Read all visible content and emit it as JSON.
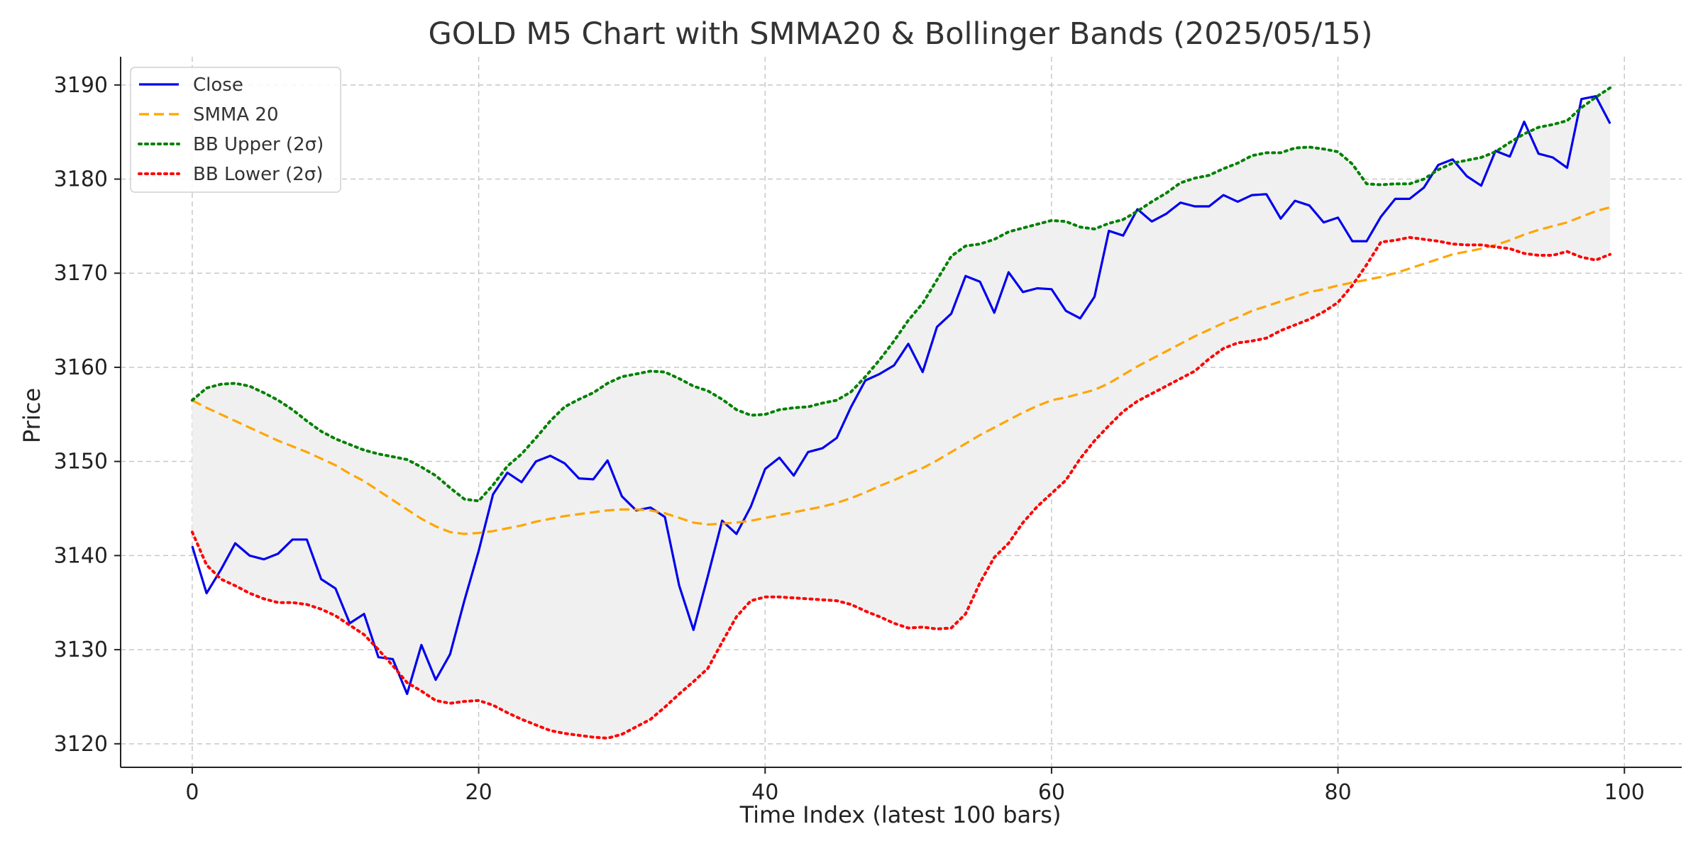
{
  "chart_data": {
    "type": "line",
    "title": "GOLD M5 Chart with SMMA20 & Bollinger Bands (2025/05/15)",
    "xlabel": "Time Index (latest 100 bars)",
    "ylabel": "Price",
    "xlim": [
      -5,
      104
    ],
    "ylim": [
      3117.5,
      3193
    ],
    "xticks": [
      0,
      20,
      40,
      60,
      80,
      100
    ],
    "yticks": [
      3120,
      3130,
      3140,
      3150,
      3160,
      3170,
      3180,
      3190
    ],
    "grid": true,
    "legend_position": "top-left",
    "band_fill": "#f0f0f0",
    "series": [
      {
        "name": "Close",
        "style": "solid",
        "color": "#0000ee",
        "values": [
          3141.0,
          3136.0,
          3138.5,
          3141.3,
          3140.0,
          3139.6,
          3140.2,
          3141.7,
          3141.7,
          3137.5,
          3136.5,
          3132.8,
          3133.8,
          3129.2,
          3129.0,
          3125.3,
          3130.5,
          3126.8,
          3129.5,
          3135.2,
          3140.5,
          3146.5,
          3148.8,
          3147.8,
          3150.0,
          3150.6,
          3149.8,
          3148.2,
          3148.1,
          3150.1,
          3146.3,
          3144.8,
          3145.1,
          3144.1,
          3136.8,
          3132.1,
          3137.8,
          3143.7,
          3142.3,
          3145.2,
          3149.2,
          3150.4,
          3148.5,
          3151.0,
          3151.4,
          3152.5,
          3155.8,
          3158.6,
          3159.3,
          3160.2,
          3162.5,
          3159.5,
          3164.3,
          3165.7,
          3169.7,
          3169.1,
          3165.8,
          3170.1,
          3168.0,
          3168.4,
          3168.3,
          3166.0,
          3165.2,
          3167.5,
          3174.5,
          3174.0,
          3176.8,
          3175.5,
          3176.3,
          3177.5,
          3177.1,
          3177.1,
          3178.3,
          3177.6,
          3178.3,
          3178.4,
          3175.8,
          3177.7,
          3177.2,
          3175.4,
          3175.9,
          3173.4,
          3173.4,
          3176.0,
          3177.9,
          3177.9,
          3179.1,
          3181.5,
          3182.1,
          3180.3,
          3179.3,
          3183.0,
          3182.4,
          3186.1,
          3182.7,
          3182.3,
          3181.2,
          3188.5,
          3188.8,
          3185.9
        ]
      },
      {
        "name": "SMMA 20",
        "style": "dashed",
        "color": "#ffa500",
        "values": [
          3156.5,
          3155.7,
          3155.0,
          3154.3,
          3153.6,
          3152.9,
          3152.2,
          3151.6,
          3151.0,
          3150.3,
          3149.6,
          3148.7,
          3147.9,
          3146.9,
          3145.9,
          3144.9,
          3143.9,
          3143.1,
          3142.5,
          3142.3,
          3142.4,
          3142.6,
          3142.9,
          3143.2,
          3143.6,
          3143.9,
          3144.2,
          3144.4,
          3144.6,
          3144.8,
          3144.9,
          3144.9,
          3144.8,
          3144.5,
          3144.0,
          3143.5,
          3143.3,
          3143.4,
          3143.5,
          3143.7,
          3144.0,
          3144.3,
          3144.6,
          3144.9,
          3145.2,
          3145.6,
          3146.1,
          3146.7,
          3147.4,
          3148.0,
          3148.7,
          3149.3,
          3150.1,
          3151.0,
          3151.9,
          3152.8,
          3153.6,
          3154.4,
          3155.2,
          3155.9,
          3156.5,
          3156.8,
          3157.2,
          3157.6,
          3158.3,
          3159.2,
          3160.1,
          3160.9,
          3161.7,
          3162.5,
          3163.3,
          3164.0,
          3164.7,
          3165.3,
          3166.0,
          3166.5,
          3167.0,
          3167.5,
          3168.0,
          3168.3,
          3168.7,
          3169.0,
          3169.3,
          3169.6,
          3170.0,
          3170.5,
          3171.0,
          3171.5,
          3172.0,
          3172.3,
          3172.6,
          3173.0,
          3173.5,
          3174.1,
          3174.6,
          3175.0,
          3175.4,
          3176.0,
          3176.6,
          3177.0
        ]
      },
      {
        "name": "BB Upper (2σ)",
        "style": "dotted",
        "color": "#008000",
        "values": [
          3156.5,
          3157.8,
          3158.2,
          3158.3,
          3158.0,
          3157.3,
          3156.5,
          3155.5,
          3154.3,
          3153.2,
          3152.4,
          3151.8,
          3151.2,
          3150.8,
          3150.5,
          3150.2,
          3149.4,
          3148.5,
          3147.2,
          3146.0,
          3145.8,
          3147.5,
          3149.5,
          3150.8,
          3152.5,
          3154.3,
          3155.8,
          3156.6,
          3157.3,
          3158.3,
          3159.0,
          3159.3,
          3159.6,
          3159.5,
          3158.8,
          3158.0,
          3157.5,
          3156.6,
          3155.5,
          3154.9,
          3155.0,
          3155.5,
          3155.7,
          3155.8,
          3156.2,
          3156.5,
          3157.4,
          3159.0,
          3160.8,
          3162.8,
          3165.0,
          3166.8,
          3169.3,
          3171.8,
          3172.9,
          3173.1,
          3173.6,
          3174.4,
          3174.8,
          3175.2,
          3175.6,
          3175.5,
          3174.9,
          3174.7,
          3175.3,
          3175.7,
          3176.6,
          3177.6,
          3178.5,
          3179.6,
          3180.1,
          3180.4,
          3181.1,
          3181.7,
          3182.5,
          3182.8,
          3182.8,
          3183.3,
          3183.4,
          3183.2,
          3182.9,
          3181.6,
          3179.5,
          3179.4,
          3179.5,
          3179.5,
          3180.0,
          3181.0,
          3181.7,
          3182.0,
          3182.3,
          3182.9,
          3183.9,
          3184.8,
          3185.5,
          3185.8,
          3186.2,
          3187.6,
          3188.7,
          3189.7
        ]
      },
      {
        "name": "BB Lower (2σ)",
        "style": "dotted",
        "color": "#ff0000",
        "values": [
          3142.5,
          3139.0,
          3137.5,
          3136.8,
          3136.0,
          3135.4,
          3135.0,
          3135.0,
          3134.8,
          3134.3,
          3133.6,
          3132.6,
          3131.6,
          3130.0,
          3128.3,
          3126.5,
          3125.6,
          3124.6,
          3124.3,
          3124.5,
          3124.6,
          3124.1,
          3123.3,
          3122.6,
          3122.0,
          3121.4,
          3121.1,
          3120.9,
          3120.7,
          3120.6,
          3121.0,
          3121.8,
          3122.6,
          3123.9,
          3125.3,
          3126.6,
          3128.0,
          3130.8,
          3133.5,
          3135.2,
          3135.6,
          3135.6,
          3135.5,
          3135.4,
          3135.3,
          3135.2,
          3134.8,
          3134.1,
          3133.5,
          3132.8,
          3132.3,
          3132.4,
          3132.2,
          3132.3,
          3133.8,
          3137.1,
          3139.8,
          3141.3,
          3143.5,
          3145.2,
          3146.6,
          3148.0,
          3150.3,
          3152.2,
          3153.8,
          3155.3,
          3156.4,
          3157.2,
          3158.0,
          3158.8,
          3159.6,
          3160.9,
          3162.0,
          3162.6,
          3162.8,
          3163.1,
          3163.9,
          3164.5,
          3165.1,
          3165.9,
          3166.9,
          3168.7,
          3170.9,
          3173.3,
          3173.5,
          3173.8,
          3173.6,
          3173.4,
          3173.1,
          3173.0,
          3173.0,
          3172.8,
          3172.6,
          3172.1,
          3171.9,
          3171.9,
          3172.3,
          3171.7,
          3171.4,
          3172.0
        ]
      }
    ]
  }
}
